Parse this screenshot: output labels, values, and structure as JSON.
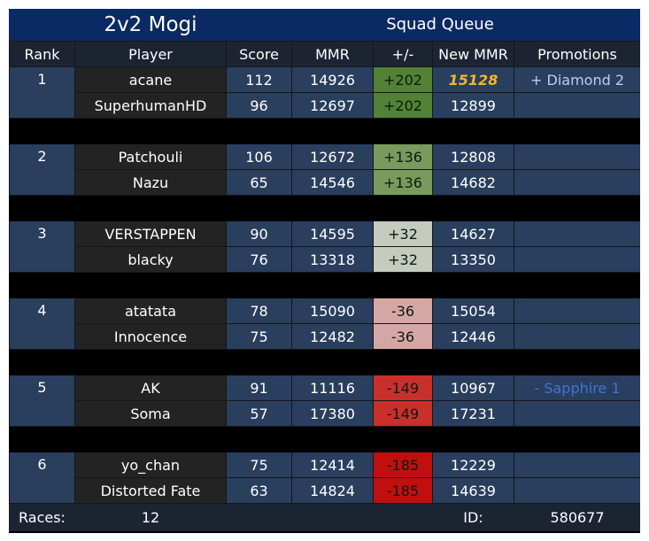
{
  "title": "2v2 Mogi",
  "subtitle": "Squad Queue",
  "headers": [
    "Rank",
    "Player",
    "Score",
    "MMR",
    "+/-",
    "New MMR",
    "Promotions"
  ],
  "teams": [
    {
      "rank": "1",
      "delta": "+202",
      "delta_color": "#538135",
      "promotion": "+ Diamond 2",
      "promotion_type": "up",
      "players": [
        {
          "name": "acane",
          "score": "112",
          "mmr": "14926",
          "new_mmr": "15128",
          "highlight": true
        },
        {
          "name": "SuperhumanHD",
          "score": "96",
          "mmr": "12697",
          "new_mmr": "12899",
          "highlight": false
        }
      ]
    },
    {
      "rank": "2",
      "delta": "+136",
      "delta_color": "#789b5d",
      "promotion": "",
      "promotion_type": "",
      "players": [
        {
          "name": "Patchouli",
          "score": "106",
          "mmr": "12672",
          "new_mmr": "12808",
          "highlight": false
        },
        {
          "name": "Nazu",
          "score": "65",
          "mmr": "14546",
          "new_mmr": "14682",
          "highlight": false
        }
      ]
    },
    {
      "rank": "3",
      "delta": "+32",
      "delta_color": "#c5cbbf",
      "promotion": "",
      "promotion_type": "",
      "players": [
        {
          "name": "VERSTAPPEN",
          "score": "90",
          "mmr": "14595",
          "new_mmr": "14627",
          "highlight": false
        },
        {
          "name": "blacky",
          "score": "76",
          "mmr": "13318",
          "new_mmr": "13350",
          "highlight": false
        }
      ]
    },
    {
      "rank": "4",
      "delta": "-36",
      "delta_color": "#d5a7a4",
      "promotion": "",
      "promotion_type": "",
      "players": [
        {
          "name": "atatata",
          "score": "78",
          "mmr": "15090",
          "new_mmr": "15054",
          "highlight": false
        },
        {
          "name": "Innocence",
          "score": "75",
          "mmr": "12482",
          "new_mmr": "12446",
          "highlight": false
        }
      ]
    },
    {
      "rank": "5",
      "delta": "-149",
      "delta_color": "#c9302c",
      "promotion": "- Sapphire 1",
      "promotion_type": "down",
      "players": [
        {
          "name": "AK",
          "score": "91",
          "mmr": "11116",
          "new_mmr": "10967",
          "highlight": false
        },
        {
          "name": "Soma",
          "score": "57",
          "mmr": "17380",
          "new_mmr": "17231",
          "highlight": false
        }
      ]
    },
    {
      "rank": "6",
      "delta": "-185",
      "delta_color": "#c00f0f",
      "promotion": "",
      "promotion_type": "",
      "players": [
        {
          "name": "yo_chan",
          "score": "75",
          "mmr": "12414",
          "new_mmr": "12229",
          "highlight": false
        },
        {
          "name": "Distorted Fate",
          "score": "63",
          "mmr": "14824",
          "new_mmr": "14639",
          "highlight": false
        }
      ]
    }
  ],
  "footer": {
    "races_label": "Races:",
    "races_value": "12",
    "id_label": "ID:",
    "id_value": "580677"
  }
}
